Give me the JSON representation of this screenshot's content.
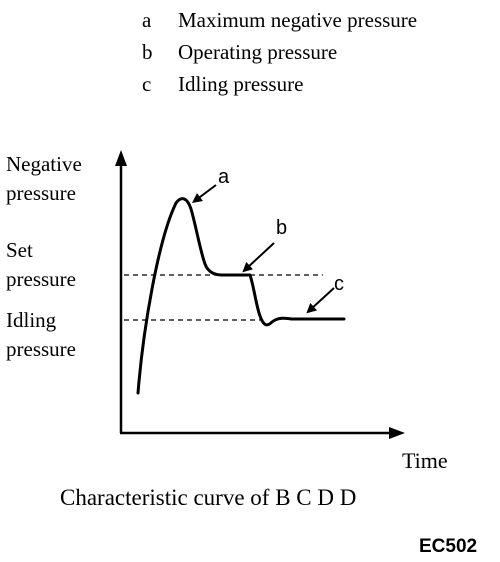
{
  "legend": [
    {
      "key": "a",
      "label": "Maximum negative pressure"
    },
    {
      "key": "b",
      "label": "Operating pressure"
    },
    {
      "key": "c",
      "label": "Idling pressure"
    }
  ],
  "y_labels": {
    "negative_pressure": [
      "Negative",
      "pressure"
    ],
    "set_pressure": [
      "Set",
      "pressure"
    ],
    "idling_pressure": [
      "Idling",
      "pressure"
    ]
  },
  "x_label": "Time",
  "curve_labels": {
    "a": "a",
    "b": "b",
    "c": "c"
  },
  "caption": "Characteristic curve of B C D D",
  "figure_code": "EC502"
}
